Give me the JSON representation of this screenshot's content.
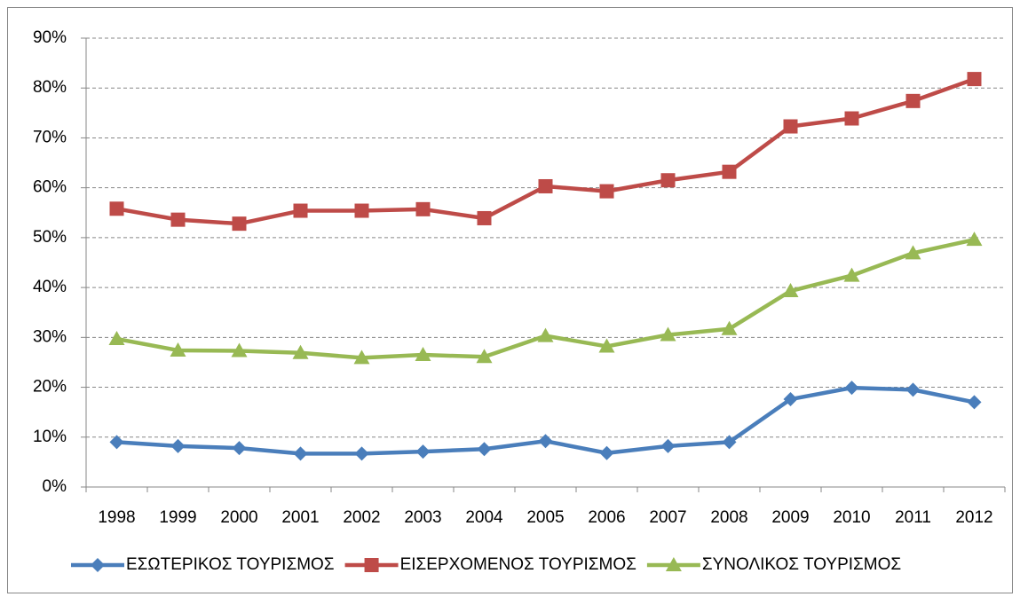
{
  "chart_data": {
    "type": "line",
    "categories": [
      "1998",
      "1999",
      "2000",
      "2001",
      "2002",
      "2003",
      "2004",
      "2005",
      "2006",
      "2007",
      "2008",
      "2009",
      "2010",
      "2011",
      "2012"
    ],
    "series": [
      {
        "name": "ΕΣΩΤΕΡΙΚΟΣ ΤΟΥΡΙΣΜΟΣ",
        "color": "#4a7ebb",
        "marker": "diamond",
        "values": [
          9,
          8.2,
          7.8,
          6.7,
          6.7,
          7.1,
          7.6,
          9.2,
          6.8,
          8.2,
          9,
          17.6,
          19.9,
          19.5,
          17
        ]
      },
      {
        "name": "ΕΙΣΕΡΧΟΜΕΝΟΣ ΤΟΥΡΙΣΜΟΣ",
        "color": "#be4b48",
        "marker": "square",
        "values": [
          55.8,
          53.6,
          52.8,
          55.4,
          55.4,
          55.7,
          53.9,
          60.3,
          59.3,
          61.5,
          63.2,
          72.3,
          73.9,
          77.4,
          81.8
        ]
      },
      {
        "name": "ΣΥΝΟΛΙΚΟΣ ΤΟΥΡΙΣΜΟΣ",
        "color": "#98b954",
        "marker": "triangle",
        "values": [
          29.7,
          27.4,
          27.3,
          26.9,
          25.9,
          26.5,
          26.1,
          30.3,
          28.2,
          30.5,
          31.7,
          39.3,
          42.4,
          46.9,
          49.6
        ]
      }
    ],
    "ylim": [
      0,
      90
    ],
    "yticks": [
      {
        "value": 0,
        "label": "0%"
      },
      {
        "value": 10,
        "label": "10%"
      },
      {
        "value": 20,
        "label": "20%"
      },
      {
        "value": 30,
        "label": "30%"
      },
      {
        "value": 40,
        "label": "40%"
      },
      {
        "value": 50,
        "label": "50%"
      },
      {
        "value": 60,
        "label": "60%"
      },
      {
        "value": 70,
        "label": "70%"
      },
      {
        "value": 80,
        "label": "80%"
      },
      {
        "value": 90,
        "label": "90%"
      }
    ],
    "grid": true,
    "legend": "bottom"
  }
}
